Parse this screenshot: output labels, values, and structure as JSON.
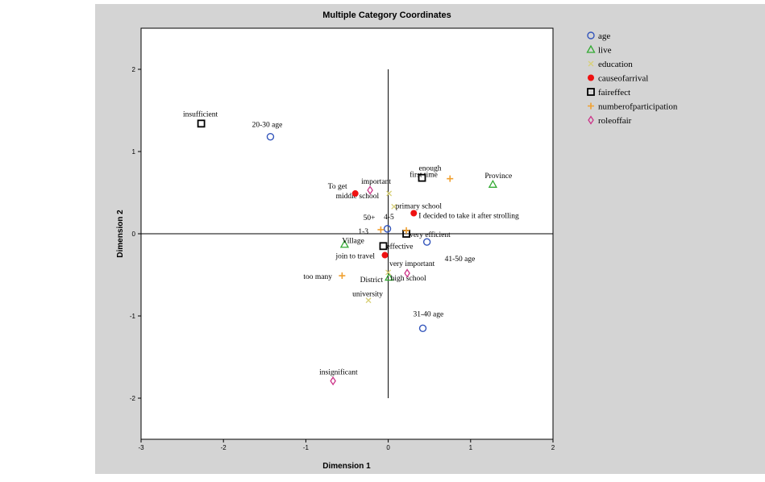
{
  "chart_data": {
    "type": "scatter",
    "title": "Multiple Category Coordinates",
    "xlabel": "Dimension 1",
    "ylabel": "Dimension 2",
    "xlim": [
      -3,
      2
    ],
    "ylim": [
      -2.5,
      2.5
    ],
    "x_ticks": [
      "-3",
      "-2",
      "-1",
      "0",
      "1",
      "2"
    ],
    "y_ticks": [
      "-2",
      "-1",
      "0",
      "1",
      "2"
    ],
    "reference_lines": {
      "x": 0,
      "y": 0,
      "x_span": [
        -3,
        2
      ],
      "y_span": [
        -2,
        2
      ]
    },
    "legend_position": "right",
    "series": [
      {
        "name": "age",
        "marker": "circle",
        "color": "#3355bb",
        "points": [
          {
            "label": "20-30 age",
            "x": -1.43,
            "y": 1.18
          },
          {
            "label": "50+",
            "x": -0.01,
            "y": 0.06
          },
          {
            "label": "41-50 age",
            "x": 0.47,
            "y": -0.1
          },
          {
            "label": "31-40 age",
            "x": 0.42,
            "y": -1.15
          }
        ]
      },
      {
        "name": "live",
        "marker": "triangle",
        "color": "#33aa33",
        "points": [
          {
            "label": "Province",
            "x": 1.27,
            "y": 0.6
          },
          {
            "label": "Village",
            "x": -0.53,
            "y": -0.13
          },
          {
            "label": "District",
            "x": 0.01,
            "y": -0.53
          }
        ]
      },
      {
        "name": "education",
        "marker": "x",
        "color": "#d8d078",
        "points": [
          {
            "label": "middle school",
            "x": 0.01,
            "y": 0.49
          },
          {
            "label": "primary school",
            "x": 0.07,
            "y": 0.33
          },
          {
            "label": "university",
            "x": -0.24,
            "y": -0.81
          },
          {
            "label": "high school",
            "x": 0.0,
            "y": -0.47
          }
        ]
      },
      {
        "name": "causeofarrival",
        "marker": "dot",
        "color": "#ee1111",
        "points": [
          {
            "label": "To get",
            "x": -0.4,
            "y": 0.49
          },
          {
            "label": "I decided to take it after strolling",
            "x": 0.31,
            "y": 0.25
          },
          {
            "label": "join to travel",
            "x": -0.04,
            "y": -0.26
          }
        ]
      },
      {
        "name": "faireffect",
        "marker": "square",
        "color": "#000000",
        "points": [
          {
            "label": "insufficient",
            "x": -2.27,
            "y": 1.34
          },
          {
            "label": "enough",
            "x": 0.41,
            "y": 0.68
          },
          {
            "label": "very efficient",
            "x": 0.22,
            "y": 0.0
          },
          {
            "label": "effective",
            "x": -0.06,
            "y": -0.15
          }
        ]
      },
      {
        "name": "numberofparticipation",
        "marker": "plus",
        "color": "#f0a030",
        "points": [
          {
            "label": "first time",
            "x": 0.75,
            "y": 0.67
          },
          {
            "label": "4-5",
            "x": 0.22,
            "y": 0.04
          },
          {
            "label": "1-3",
            "x": -0.09,
            "y": 0.05
          },
          {
            "label": "too many",
            "x": -0.56,
            "y": -0.51
          }
        ]
      },
      {
        "name": "roleoffair",
        "marker": "diamond",
        "color": "#cc3388",
        "points": [
          {
            "label": "important",
            "x": -0.22,
            "y": 0.53
          },
          {
            "label": "very important",
            "x": 0.23,
            "y": -0.48
          },
          {
            "label": "insignificant",
            "x": -0.67,
            "y": -1.79
          }
        ]
      }
    ]
  }
}
